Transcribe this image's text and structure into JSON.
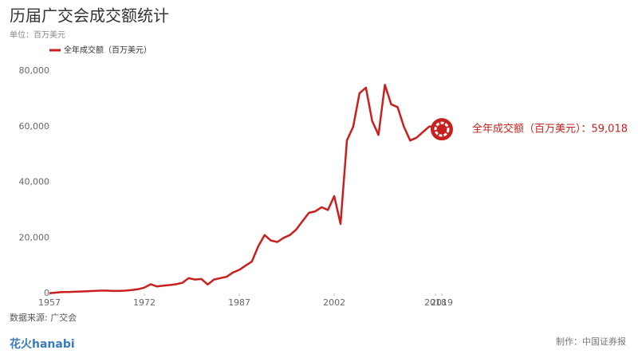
{
  "chart_data": {
    "type": "line",
    "title": "历届广交会成交额统计",
    "subtitle": "单位：百万美元",
    "x": [
      1957,
      1958,
      1959,
      1960,
      1961,
      1962,
      1963,
      1964,
      1965,
      1966,
      1967,
      1968,
      1969,
      1970,
      1971,
      1972,
      1973,
      1974,
      1975,
      1976,
      1977,
      1978,
      1979,
      1980,
      1981,
      1982,
      1983,
      1984,
      1985,
      1986,
      1987,
      1988,
      1989,
      1990,
      1991,
      1992,
      1993,
      1994,
      1995,
      1996,
      1997,
      1998,
      1999,
      2000,
      2001,
      2002,
      2003,
      2004,
      2005,
      2006,
      2007,
      2008,
      2009,
      2010,
      2011,
      2012,
      2013,
      2014,
      2015,
      2016,
      2017,
      2018,
      2019
    ],
    "series": [
      {
        "name": "全年成交额（百万美元）",
        "color": "#c8201e",
        "values": [
          87,
          300,
          500,
          500,
          600,
          700,
          800,
          900,
          1000,
          1000,
          900,
          900,
          1000,
          1200,
          1500,
          2100,
          3300,
          2500,
          2800,
          3000,
          3300,
          3800,
          5500,
          5000,
          5200,
          3200,
          5000,
          5500,
          6000,
          7500,
          8500,
          10000,
          11500,
          17000,
          21000,
          19000,
          18500,
          20000,
          21000,
          23000,
          26000,
          29000,
          29500,
          31000,
          30000,
          35000,
          25000,
          55000,
          60000,
          72000,
          74000,
          62000,
          57000,
          75000,
          68000,
          67000,
          60000,
          55000,
          56000,
          58000,
          60000,
          60000,
          59018
        ]
      }
    ],
    "annotation": "全年成交额（百万美元）：59,018",
    "xlim": [
      1957,
      2019
    ],
    "xticks": [
      1957,
      1972,
      1987,
      2002,
      2018,
      2019
    ],
    "ylim": [
      0,
      80000
    ],
    "yticks": [
      0,
      {
        "value": 20000,
        "label": "20,000"
      },
      {
        "value": 40000,
        "label": "40,000"
      },
      {
        "value": 60000,
        "label": "60,000"
      },
      {
        "value": 80000,
        "label": "80,000"
      }
    ],
    "grid": false,
    "source": "数据来源: 广交会",
    "credit": "制作：中国证券报",
    "logo": "花火hanabi"
  }
}
